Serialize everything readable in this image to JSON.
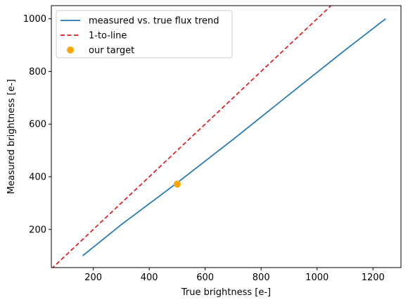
{
  "chart_data": {
    "type": "line",
    "xlabel": "True brightness [e-]",
    "ylabel": "Measured brightness [e-]",
    "xlim": [
      50,
      1300
    ],
    "ylim": [
      55,
      1050
    ],
    "x_ticks": [
      200,
      400,
      600,
      800,
      1000,
      1200
    ],
    "y_ticks": [
      200,
      400,
      600,
      800,
      1000
    ],
    "grid": false,
    "legend_position": "upper-left",
    "series": [
      {
        "name": "measured vs. true flux trend",
        "kind": "line",
        "style": "solid",
        "color": "#1f77b4",
        "points": [
          [
            162,
            100
          ],
          [
            300,
            218
          ],
          [
            500,
            377
          ],
          [
            700,
            542
          ],
          [
            900,
            712
          ],
          [
            1100,
            881
          ],
          [
            1245,
            1000
          ]
        ]
      },
      {
        "name": "1-to-line",
        "kind": "line",
        "style": "dashed",
        "color": "#e41a1c",
        "points": [
          [
            50,
            50
          ],
          [
            1050,
            1050
          ]
        ]
      },
      {
        "name": "our target",
        "kind": "scatter",
        "color": "#ffa500",
        "points": [
          [
            500,
            372
          ]
        ]
      }
    ]
  }
}
